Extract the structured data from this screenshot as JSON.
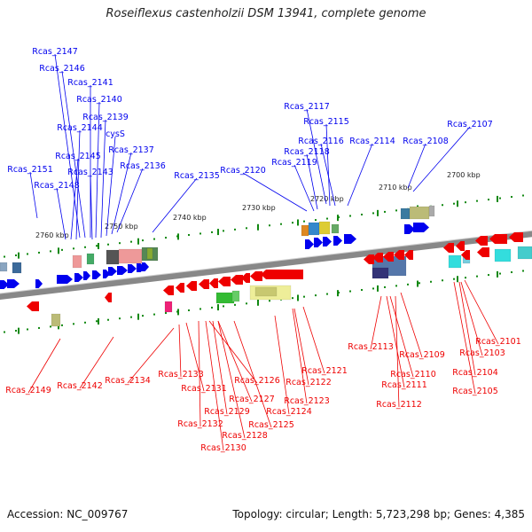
{
  "title": "Roseiflexus castenholzii DSM 13941, complete genome",
  "footer": {
    "accession": "Accession: NC_009767",
    "summary": "Topology: circular; Length: 5,723,298 bp; Genes: 4,385"
  },
  "colors": {
    "forward": "#0000ee",
    "reverse": "#ee0000",
    "backbone": "#888888",
    "tick": "#118811"
  },
  "scale_labels": [
    "2760 kbp",
    "2750 kbp",
    "2740 kbp",
    "2730 kbp",
    "2720 kbp",
    "2710 kbp",
    "2700 kbp"
  ],
  "forward_gene_labels": [
    "Rcas_2147",
    "Rcas_2146",
    "Rcas_2141",
    "Rcas_2140",
    "Rcas_2139",
    "cysS",
    "Rcas_2144",
    "Rcas_2137",
    "Rcas_2145",
    "Rcas_2136",
    "Rcas_2151",
    "Rcas_2143",
    "Rcas_2148",
    "Rcas_2135",
    "Rcas_2120",
    "Rcas_2117",
    "Rcas_2115",
    "Rcas_2116",
    "Rcas_2114",
    "Rcas_2118",
    "Rcas_2119",
    "Rcas_2108",
    "Rcas_2107"
  ],
  "reverse_gene_labels": [
    "Rcas_2149",
    "Rcas_2142",
    "Rcas_2134",
    "Rcas_2133",
    "Rcas_2131",
    "Rcas_2126",
    "Rcas_2127",
    "Rcas_2129",
    "Rcas_2132",
    "Rcas_2128",
    "Rcas_2130",
    "Rcas_2125",
    "Rcas_2124",
    "Rcas_2123",
    "Rcas_2122",
    "Rcas_2121",
    "Rcas_2113",
    "Rcas_2110",
    "Rcas_2111",
    "Rcas_2112",
    "Rcas_2109",
    "Rcas_2101",
    "Rcas_2103",
    "Rcas_2104",
    "Rcas_2105"
  ]
}
